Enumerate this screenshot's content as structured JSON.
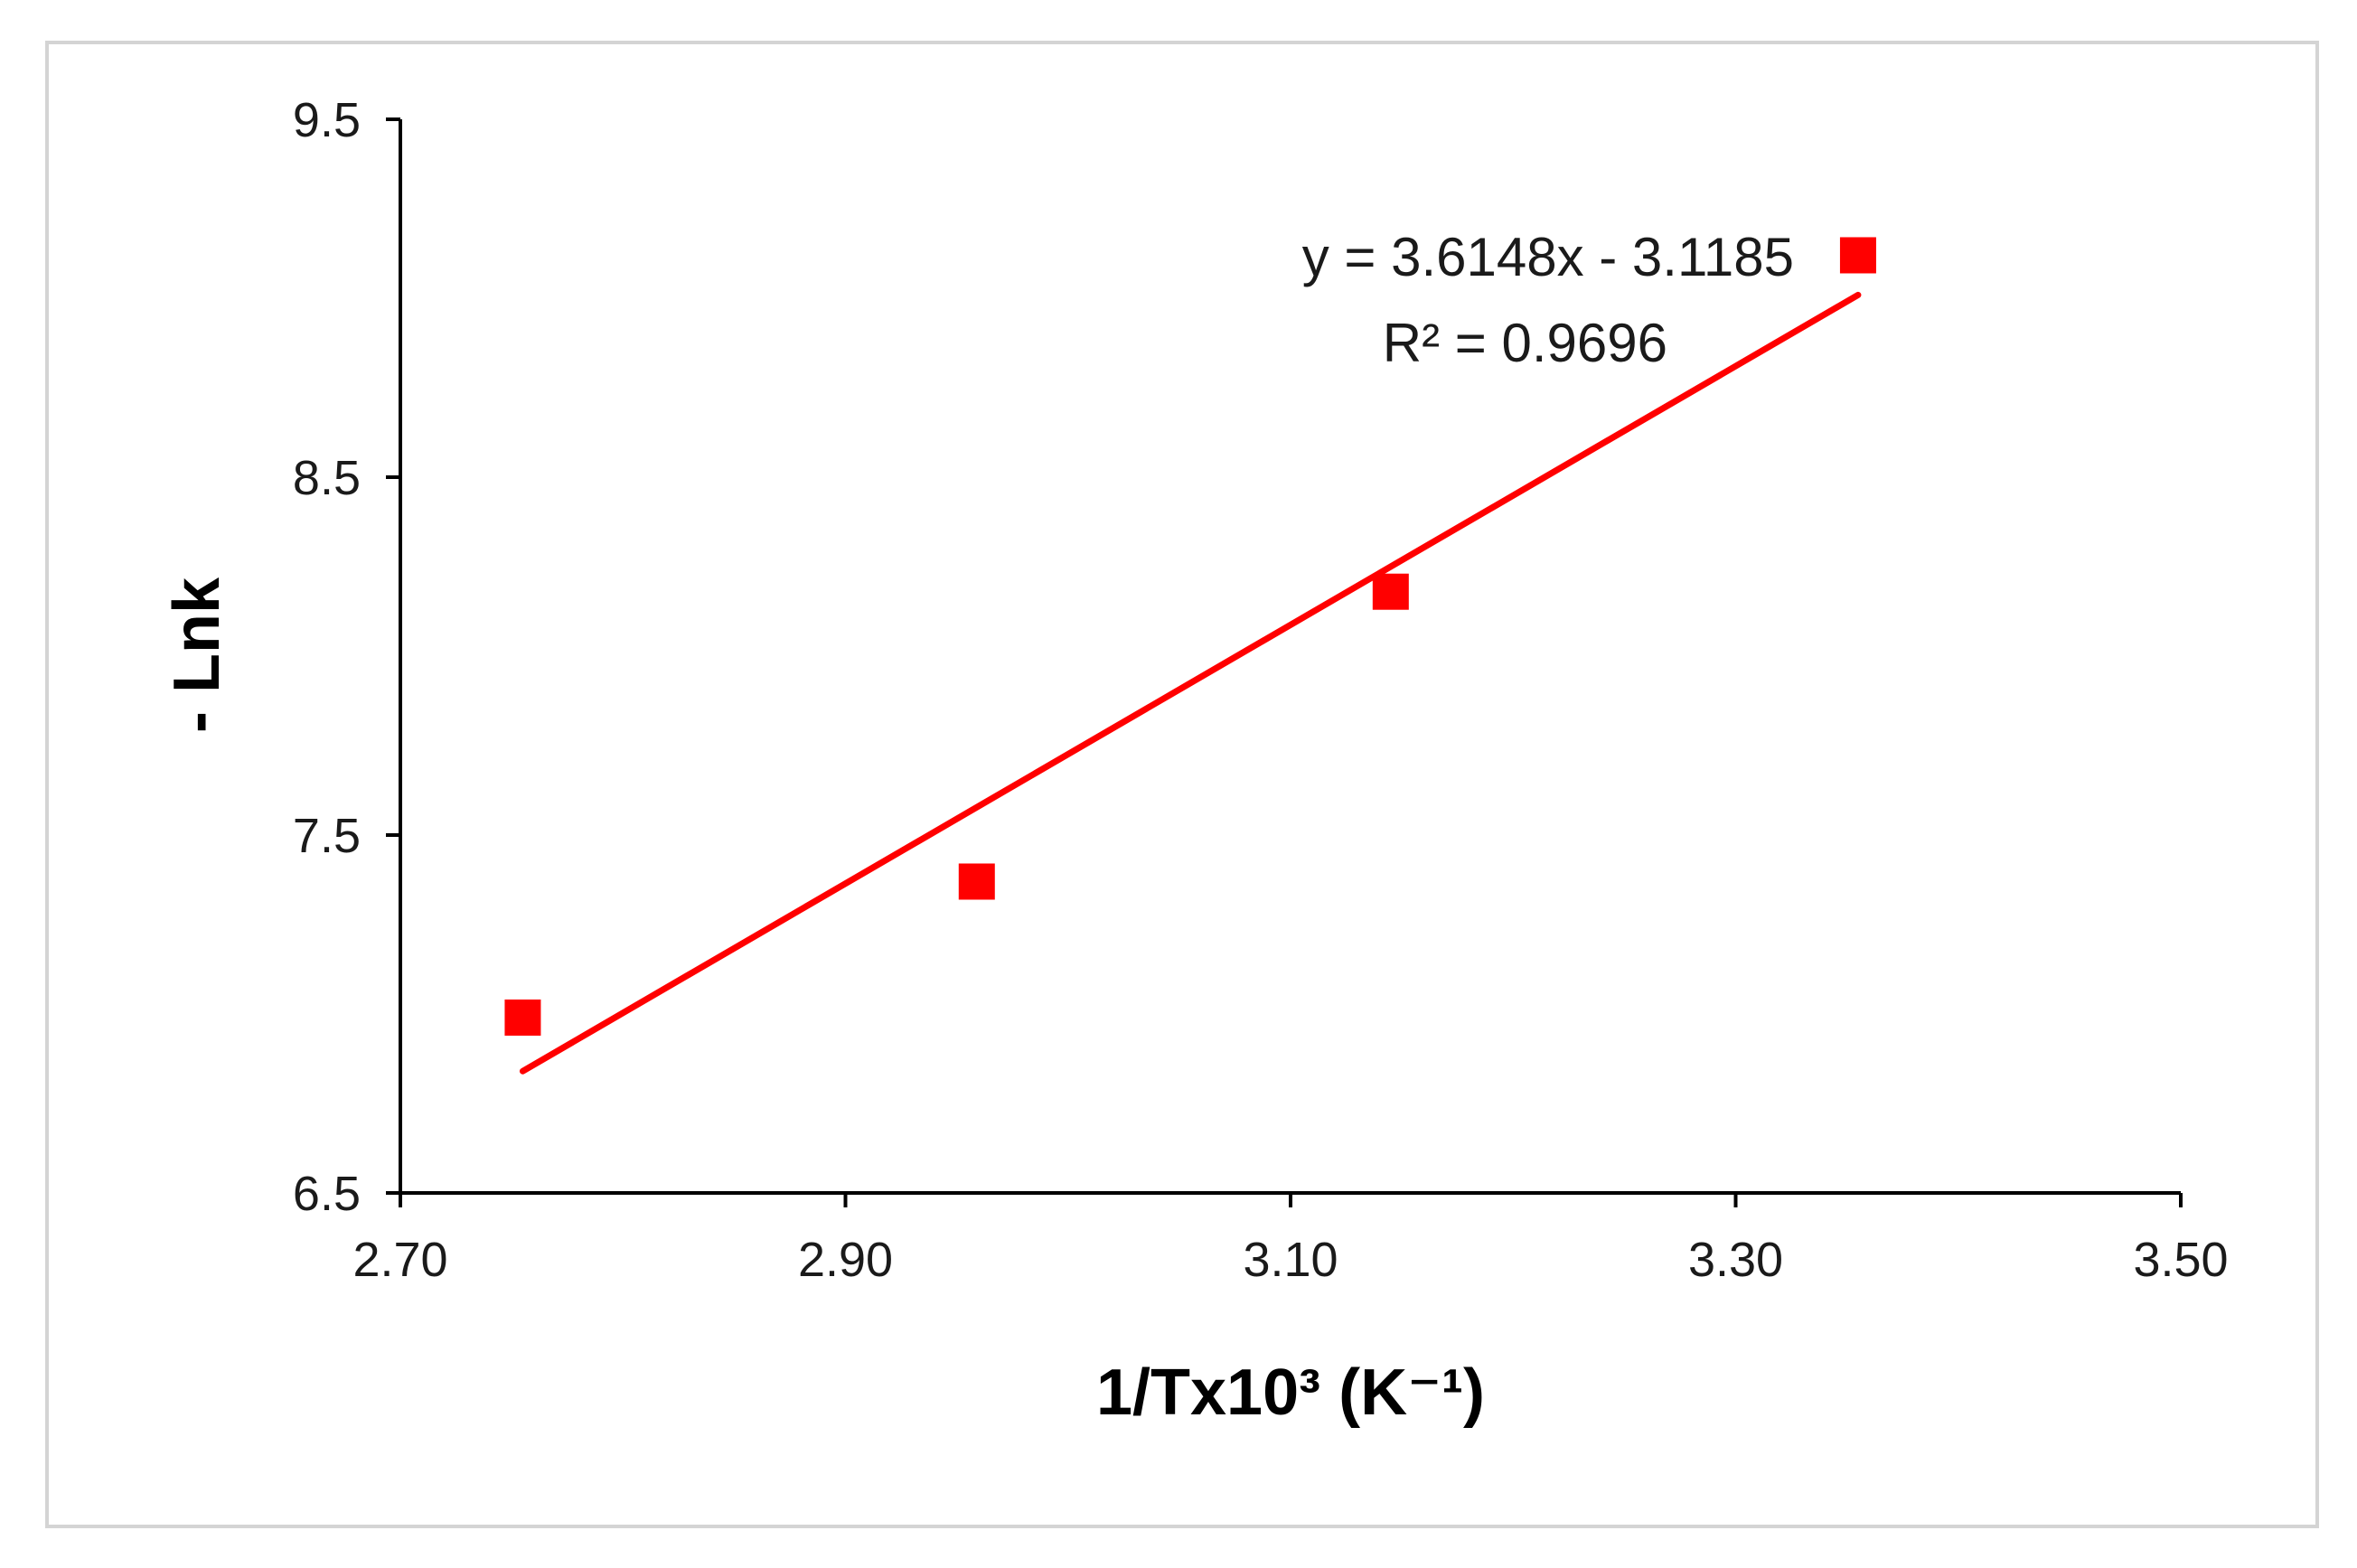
{
  "chart_data": {
    "type": "scatter",
    "x": [
      2.755,
      2.959,
      3.145,
      3.355
    ],
    "y": [
      6.99,
      7.37,
      8.18,
      9.12
    ],
    "xlabel": "1/Tx10³ (K⁻¹)",
    "ylabel": "- Lnk",
    "xlim": [
      2.7,
      3.5
    ],
    "ylim": [
      6.5,
      9.5
    ],
    "x_ticks": [
      "2.70",
      "2.90",
      "3.10",
      "3.30",
      "3.50"
    ],
    "y_ticks": [
      "9.5",
      "8.5",
      "7.5",
      "6.5"
    ],
    "trendline": {
      "slope": 3.6148,
      "intercept": -3.1185,
      "equation": "y = 3.6148x - 3.1185",
      "r_squared": "R² = 0.9696"
    },
    "grid": false,
    "legend": "none",
    "marker_color": "#ff0000",
    "line_color": "#ff0000"
  }
}
